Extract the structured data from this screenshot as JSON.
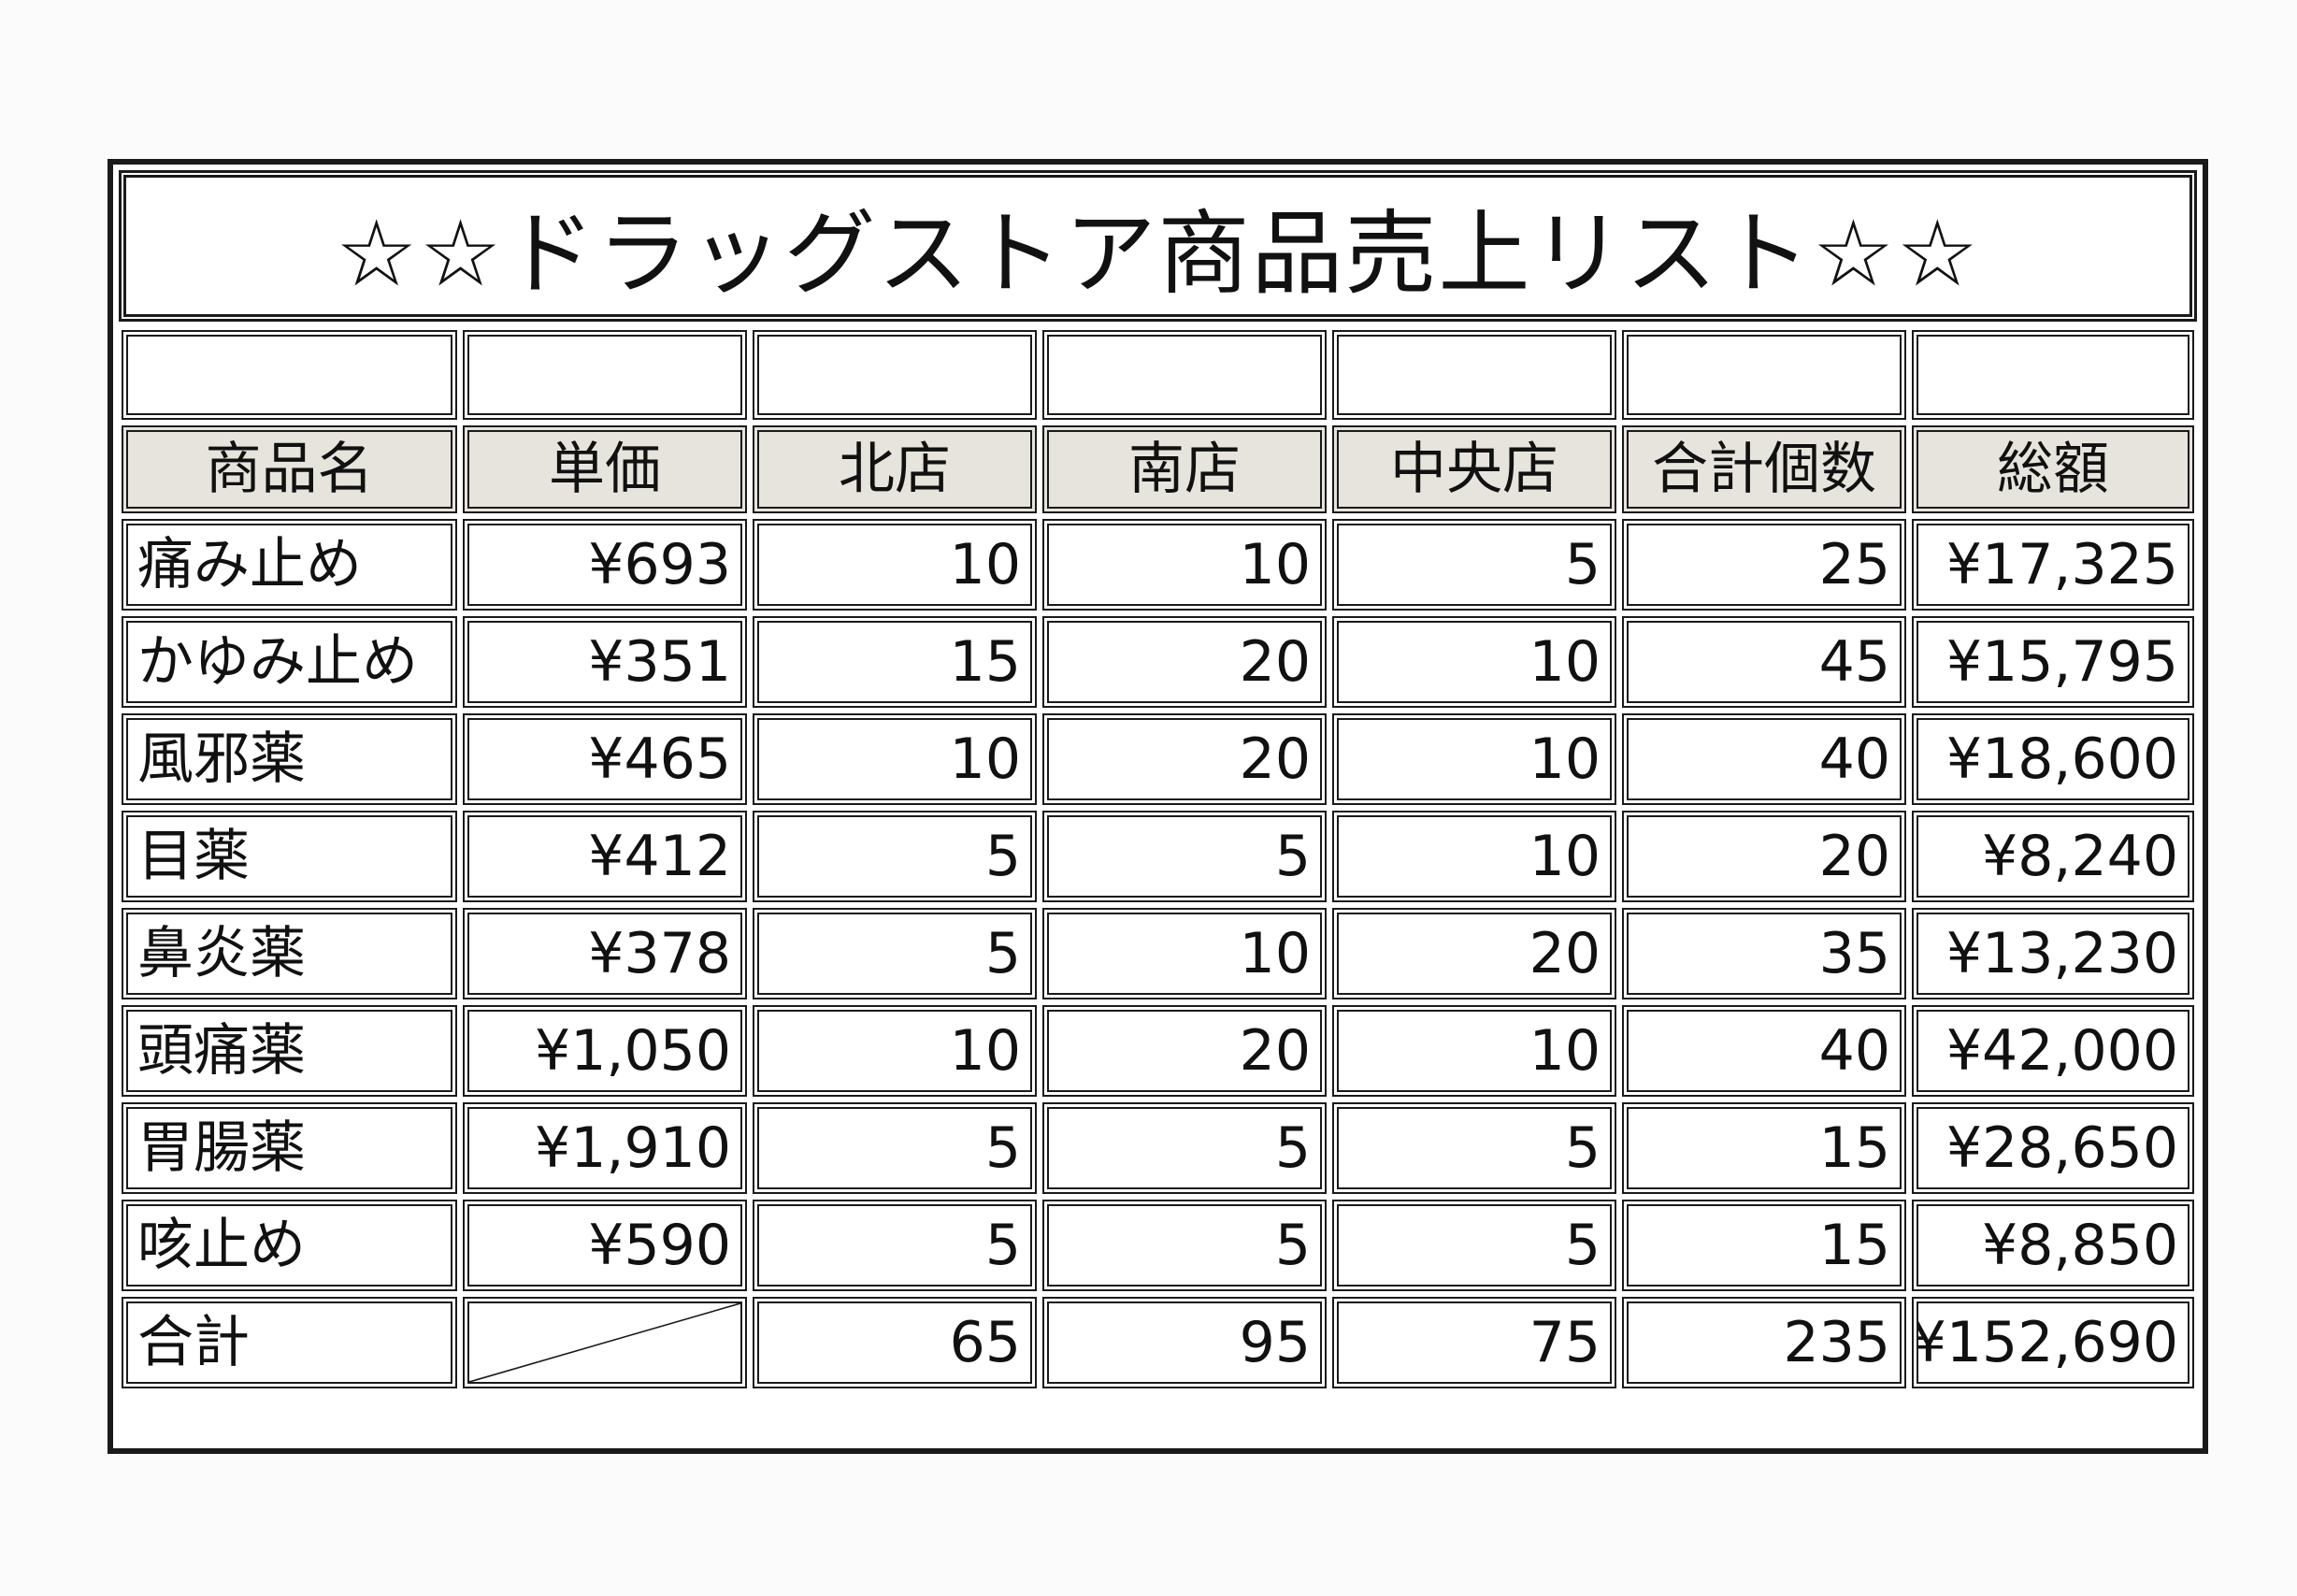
{
  "title": "☆☆ドラッグストア商品売上リスト☆☆",
  "headers": [
    "商品名",
    "単価",
    "北店",
    "南店",
    "中央店",
    "合計個数",
    "総額"
  ],
  "rows": [
    {
      "name": "痛み止め",
      "price": "¥693",
      "north": "10",
      "south": "10",
      "central": "5",
      "qty": "25",
      "total": "¥17,325"
    },
    {
      "name": "かゆみ止め",
      "price": "¥351",
      "north": "15",
      "south": "20",
      "central": "10",
      "qty": "45",
      "total": "¥15,795"
    },
    {
      "name": "風邪薬",
      "price": "¥465",
      "north": "10",
      "south": "20",
      "central": "10",
      "qty": "40",
      "total": "¥18,600"
    },
    {
      "name": "目薬",
      "price": "¥412",
      "north": "5",
      "south": "5",
      "central": "10",
      "qty": "20",
      "total": "¥8,240"
    },
    {
      "name": "鼻炎薬",
      "price": "¥378",
      "north": "5",
      "south": "10",
      "central": "20",
      "qty": "35",
      "total": "¥13,230"
    },
    {
      "name": "頭痛薬",
      "price": "¥1,050",
      "north": "10",
      "south": "20",
      "central": "10",
      "qty": "40",
      "total": "¥42,000"
    },
    {
      "name": "胃腸薬",
      "price": "¥1,910",
      "north": "5",
      "south": "5",
      "central": "5",
      "qty": "15",
      "total": "¥28,650"
    },
    {
      "name": "咳止め",
      "price": "¥590",
      "north": "5",
      "south": "5",
      "central": "5",
      "qty": "15",
      "total": "¥8,850"
    }
  ],
  "totals": {
    "label": "合計",
    "north": "65",
    "south": "95",
    "central": "75",
    "qty": "235",
    "total": "¥152,690"
  }
}
